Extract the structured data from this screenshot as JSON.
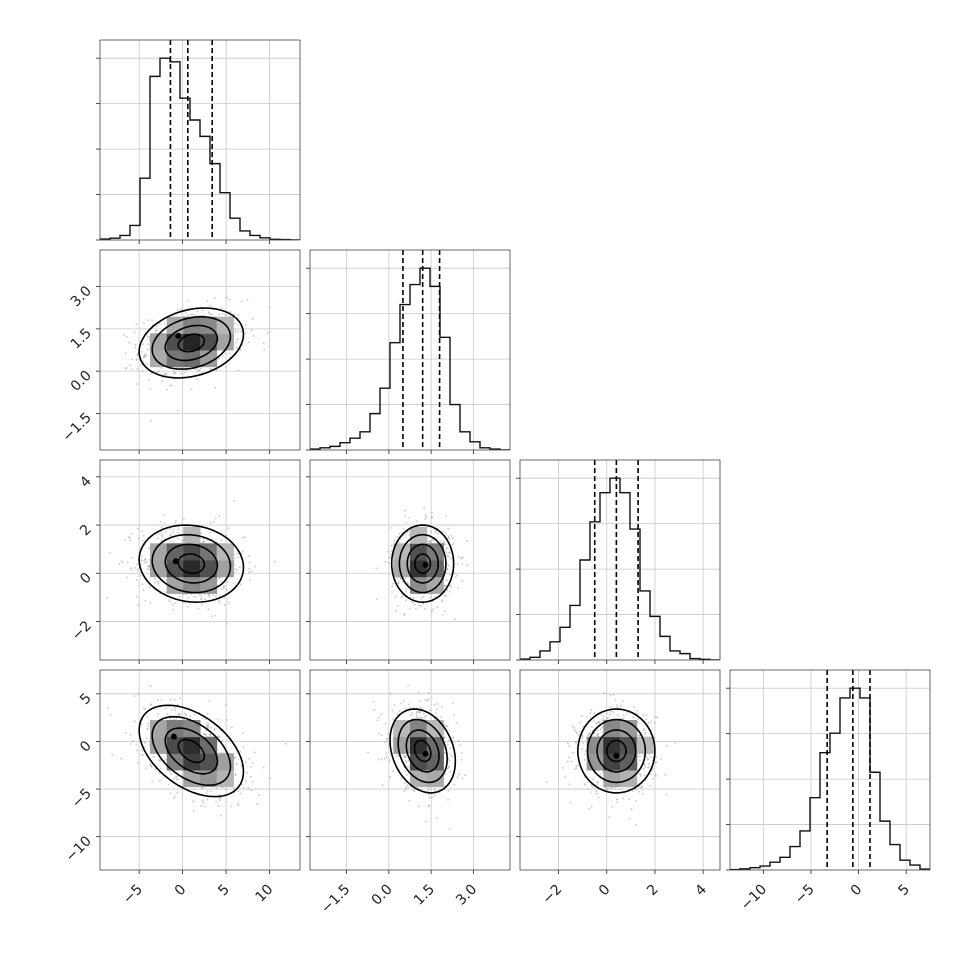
{
  "chart_data": {
    "type": "corner",
    "parameters": 4,
    "grid": true,
    "axes": [
      {
        "range": [
          -9.5,
          13.5
        ],
        "ticks": [
          -5,
          0,
          5,
          10
        ],
        "tick_labels": [
          "−5",
          "0",
          "5",
          "10"
        ]
      },
      {
        "range": [
          -2.8,
          4.3
        ],
        "ticks": [
          -1.5,
          0.0,
          1.5,
          3.0
        ],
        "tick_labels": [
          "−1.5",
          "0.0",
          "1.5",
          "3.0"
        ]
      },
      {
        "range": [
          -3.6,
          4.7
        ],
        "ticks": [
          -2,
          0,
          2,
          4
        ],
        "tick_labels": [
          "−2",
          "0",
          "2",
          "4"
        ]
      },
      {
        "range": [
          -13.5,
          7.5
        ],
        "ticks": [
          -10,
          -5,
          0,
          5
        ],
        "tick_labels": [
          "−10",
          "−5",
          "0",
          "5"
        ]
      }
    ],
    "histograms": [
      {
        "param": 0,
        "edges": [
          -9.5,
          -8.35,
          -7.2,
          -6.05,
          -4.9,
          -3.75,
          -2.6,
          -1.45,
          -0.3,
          0.85,
          2.0,
          3.15,
          4.3,
          5.45,
          6.6,
          7.75,
          8.9,
          10.05,
          11.2,
          12.35,
          13.5
        ],
        "counts": [
          0.005,
          0.01,
          0.025,
          0.08,
          0.34,
          0.9,
          1.0,
          0.98,
          0.78,
          0.66,
          0.57,
          0.42,
          0.26,
          0.12,
          0.05,
          0.025,
          0.012,
          0.004,
          0.002,
          0.0
        ],
        "quantiles": [
          -1.4,
          0.6,
          3.4
        ]
      },
      {
        "param": 1,
        "edges": [
          -2.8,
          -2.445,
          -2.09,
          -1.735,
          -1.38,
          -1.025,
          -0.67,
          -0.315,
          0.04,
          0.395,
          0.75,
          1.105,
          1.46,
          1.815,
          2.17,
          2.525,
          2.88,
          3.235,
          3.59,
          3.945,
          4.3
        ],
        "counts": [
          0.005,
          0.012,
          0.02,
          0.04,
          0.065,
          0.1,
          0.2,
          0.34,
          0.59,
          0.8,
          0.91,
          1.0,
          0.9,
          0.62,
          0.25,
          0.1,
          0.045,
          0.012,
          0.005,
          0.0
        ],
        "quantiles": [
          0.5,
          1.2,
          1.8
        ]
      },
      {
        "param": 2,
        "edges": [
          -3.6,
          -3.185,
          -2.77,
          -2.355,
          -1.94,
          -1.525,
          -1.11,
          -0.695,
          -0.28,
          0.135,
          0.55,
          0.965,
          1.38,
          1.795,
          2.21,
          2.625,
          3.04,
          3.455,
          3.87,
          4.285,
          4.7
        ],
        "counts": [
          0.005,
          0.015,
          0.05,
          0.1,
          0.18,
          0.3,
          0.55,
          0.76,
          0.92,
          1.0,
          0.92,
          0.72,
          0.38,
          0.24,
          0.13,
          0.05,
          0.035,
          0.008,
          0.004,
          0.0
        ],
        "quantiles": [
          -0.5,
          0.4,
          1.3
        ]
      },
      {
        "param": 3,
        "edges": [
          -13.5,
          -12.45,
          -11.4,
          -10.35,
          -9.3,
          -8.25,
          -7.2,
          -6.15,
          -5.1,
          -4.05,
          -3.0,
          -1.95,
          -0.9,
          0.15,
          1.2,
          2.25,
          3.3,
          4.35,
          5.4,
          6.45,
          7.5
        ],
        "counts": [
          0.002,
          0.006,
          0.012,
          0.02,
          0.04,
          0.065,
          0.12,
          0.2,
          0.37,
          0.6,
          0.7,
          0.88,
          0.93,
          0.88,
          0.5,
          0.25,
          0.13,
          0.05,
          0.025,
          0.005
        ],
        "quantiles": [
          -3.3,
          -0.6,
          1.2
        ]
      }
    ],
    "joint": [
      {
        "x_param": 0,
        "y_param": 1,
        "mean": [
          1.0,
          1.0
        ],
        "sd": [
          3.0,
          0.62
        ],
        "rho": 0.25,
        "peak": [
          -0.5,
          1.25
        ]
      },
      {
        "x_param": 0,
        "y_param": 2,
        "mean": [
          1.0,
          0.4
        ],
        "sd": [
          3.0,
          0.8
        ],
        "rho": -0.1,
        "peak": [
          -0.8,
          0.5
        ]
      },
      {
        "x_param": 1,
        "y_param": 2,
        "mean": [
          1.2,
          0.4
        ],
        "sd": [
          0.55,
          0.8
        ],
        "rho": 0.0,
        "peak": [
          1.3,
          0.35
        ]
      },
      {
        "x_param": 0,
        "y_param": 3,
        "mean": [
          1.0,
          -1.0
        ],
        "sd": [
          3.0,
          2.4
        ],
        "rho": -0.45,
        "peak": [
          -1.0,
          0.5
        ]
      },
      {
        "x_param": 1,
        "y_param": 3,
        "mean": [
          1.2,
          -1.0
        ],
        "sd": [
          0.58,
          2.2
        ],
        "rho": -0.25,
        "peak": [
          1.3,
          -1.3
        ]
      },
      {
        "x_param": 2,
        "y_param": 3,
        "mean": [
          0.4,
          -1.0
        ],
        "sd": [
          0.8,
          2.2
        ],
        "rho": 0.0,
        "peak": [
          0.4,
          -1.5
        ]
      }
    ],
    "contour_levels_sigma": [
      0.5,
      1.0,
      1.5,
      2.0
    ]
  }
}
